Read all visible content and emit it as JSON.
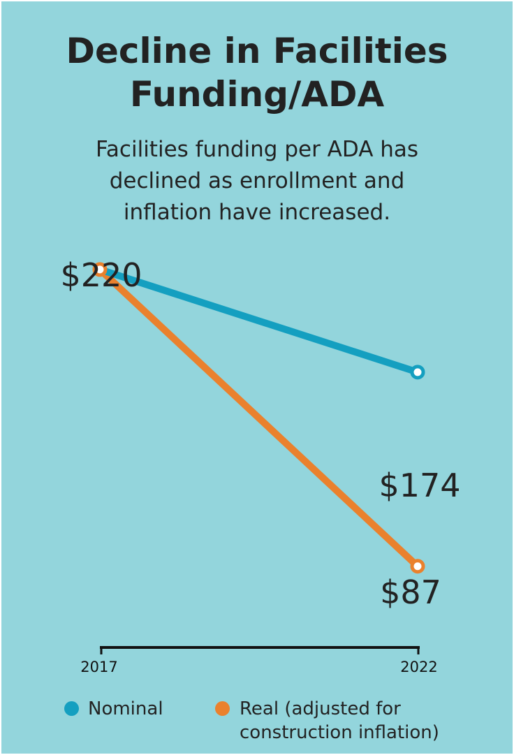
{
  "title_lines": [
    "Decline in Facilities",
    "Funding/ADA"
  ],
  "subtitle_lines": [
    "Facilities funding per ADA has",
    "declined as enrollment and",
    "inflation have increased."
  ],
  "colors": {
    "background": "#93d5dc",
    "nominal": "#149fc0",
    "real": "#ea812d",
    "text": "#222222"
  },
  "chart_data": {
    "type": "line",
    "x": [
      "2017",
      "2022"
    ],
    "ylim": [
      60,
      240
    ],
    "series": [
      {
        "name": "Nominal",
        "values": [
          220,
          174
        ],
        "color": "#149fc0"
      },
      {
        "name": "Real (adjusted for construction inflation)",
        "values": [
          220,
          87
        ],
        "color": "#ea812d"
      }
    ],
    "data_labels": [
      "$220",
      "$174",
      "$87"
    ],
    "legend": {
      "position": "bottom",
      "items": [
        {
          "lines": [
            "Nominal"
          ],
          "color": "#149fc0"
        },
        {
          "lines": [
            "Real (adjusted for",
            "construction inflation)"
          ],
          "color": "#ea812d"
        }
      ]
    }
  }
}
